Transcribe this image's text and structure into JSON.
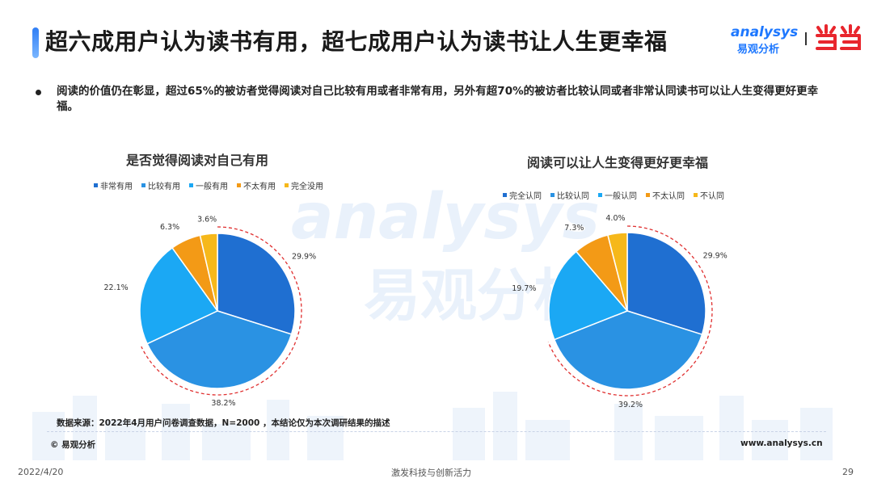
{
  "title": "超六成用户认为读书有用，超七成用户认为读书让人生更幸福",
  "brand": {
    "en": "analysys",
    "cn": "易观分析",
    "partner_logo": "dangdang-logo",
    "accent": "#1e78ff",
    "partner_color": "#e8262d"
  },
  "summary": "阅读的价值仍在彰显，超过65%的被访者觉得阅读对自己比较有用或者非常有用，另外有超70%的被访者比较认同或者非常认同读书可以让人生变得更好更幸福。",
  "chart_data": [
    {
      "type": "pie",
      "title": "是否觉得阅读对自己有用",
      "categories": [
        "非常有用",
        "比较有用",
        "一般有用",
        "不太有用",
        "完全没用"
      ],
      "values": [
        29.9,
        38.2,
        22.1,
        6.3,
        3.6
      ],
      "labels": [
        "29.9%",
        "38.2%",
        "22.1%",
        "6.3%",
        "3.6%"
      ],
      "colors": [
        "#1f6fd1",
        "#2a92e3",
        "#1ba8f4",
        "#f39a16",
        "#f6b81a"
      ],
      "legend_position": "top",
      "highlight": "dashed-ring-on-first-two-slices"
    },
    {
      "type": "pie",
      "title": "阅读可以让人生变得更好更幸福",
      "categories": [
        "完全认同",
        "比较认同",
        "一般认同",
        "不太认同",
        "不认同"
      ],
      "values": [
        29.9,
        39.2,
        19.7,
        7.3,
        4.0
      ],
      "labels": [
        "29.9%",
        "39.2%",
        "19.7%",
        "7.3%",
        "4.0%"
      ],
      "colors": [
        "#1f6fd1",
        "#2a92e3",
        "#1ba8f4",
        "#f39a16",
        "#f6b81a"
      ],
      "legend_position": "top",
      "highlight": "dashed-ring-on-first-two-slices"
    }
  ],
  "footer": {
    "source": "数据来源：2022年4月用户问卷调查数据，N=2000 ，本结论仅为本次调研结果的描述",
    "copyright": "© 易观分析",
    "website": "www.analysys.cn",
    "date": "2022/4/20",
    "slogan": "激发科技与创新活力",
    "page": "29"
  },
  "watermark": {
    "en": "analysys",
    "cn": "易观分析"
  }
}
